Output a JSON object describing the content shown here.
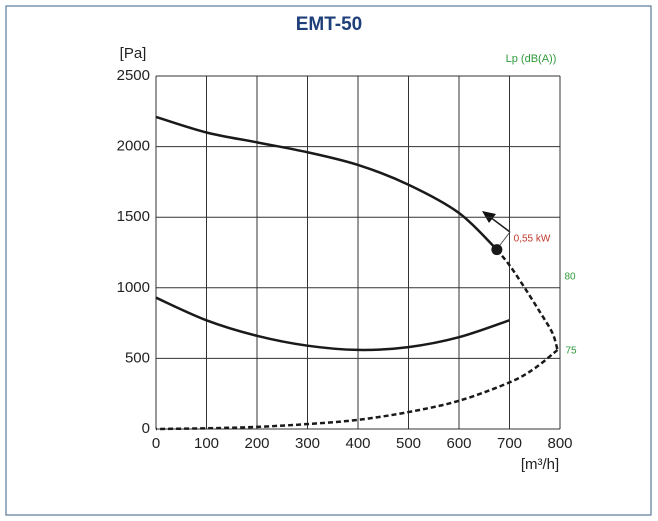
{
  "chart_data": {
    "type": "line",
    "title": "EMT-50",
    "y_label": "[Pa]",
    "x_label": "[m³/h]",
    "y2_label": "Lp (dB(A))",
    "annotations": [
      "0,55 kW",
      "80",
      "75"
    ],
    "xlim": [
      0,
      800
    ],
    "xticks": [
      0,
      100,
      200,
      300,
      400,
      500,
      600,
      700,
      800
    ],
    "ylim": [
      0,
      2500
    ],
    "yticks": [
      0,
      500,
      1000,
      1500,
      2000,
      2500
    ],
    "grid": true,
    "series": [
      {
        "color": "#1a1a1a",
        "dash": false,
        "x": [
          0,
          100,
          200,
          300,
          400,
          500,
          600,
          675
        ],
        "values": [
          2210,
          2100,
          2030,
          1960,
          1870,
          1730,
          1530,
          1270
        ]
      },
      {
        "color": "#1a1a1a",
        "dash": true,
        "x": [
          675,
          700,
          730,
          760,
          785,
          795
        ],
        "values": [
          1270,
          1160,
          1000,
          830,
          680,
          560
        ]
      },
      {
        "color": "#1a1a1a",
        "dash": true,
        "x": [
          795,
          750,
          700,
          600,
          500,
          400,
          300,
          200,
          100,
          0
        ],
        "values": [
          560,
          430,
          330,
          200,
          120,
          65,
          35,
          15,
          5,
          0
        ]
      },
      {
        "color": "#1a1a1a",
        "dash": false,
        "x": [
          0,
          100,
          200,
          300,
          400,
          500,
          600,
          700
        ],
        "values": [
          930,
          770,
          660,
          590,
          560,
          580,
          650,
          770
        ]
      },
      {
        "color": "#1a1a1a",
        "marker": true,
        "x": [
          675
        ],
        "values": [
          1270
        ]
      }
    ]
  }
}
